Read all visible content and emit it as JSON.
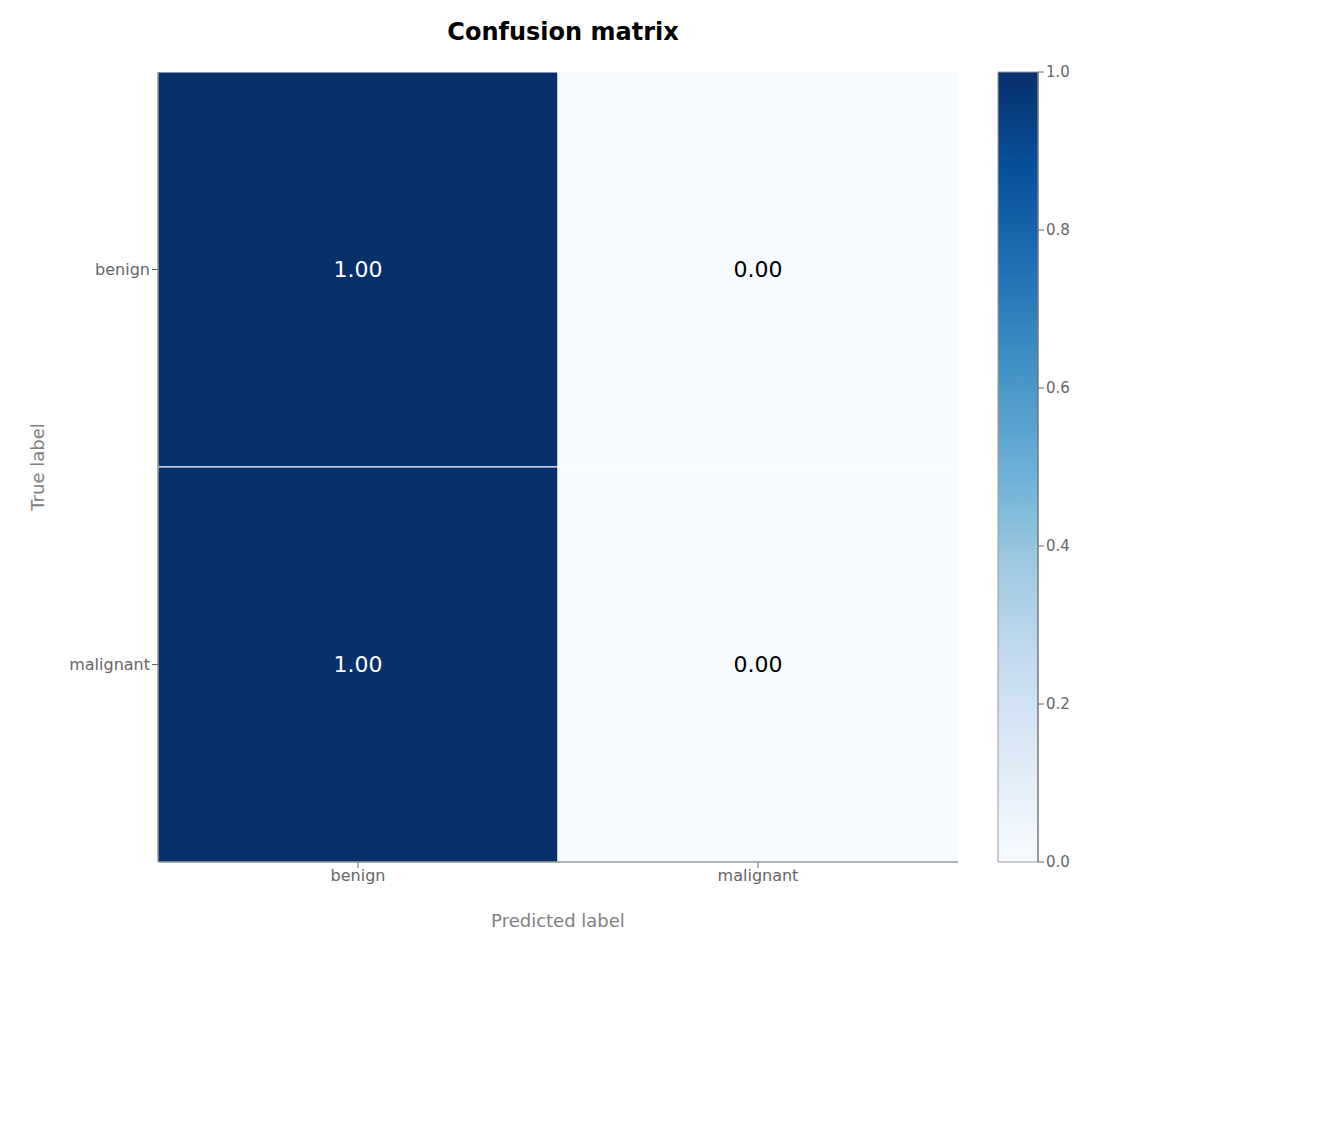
{
  "chart_data": {
    "type": "heatmap",
    "title": "Confusion matrix",
    "x_label": "Predicted label",
    "y_label": "True label",
    "categories": [
      "benign",
      "malignant"
    ],
    "matrix": [
      [
        1.0,
        0.0
      ],
      [
        1.0,
        0.0
      ]
    ],
    "value_labels": [
      [
        "1.00",
        "0.00"
      ],
      [
        "1.00",
        "0.00"
      ]
    ],
    "data_labels": true,
    "color": "Blues",
    "colorbar_range": [
      0.0,
      1.0
    ],
    "colorbar_ticks": [
      {
        "value": 0.0,
        "label": "0.0"
      },
      0.2,
      0.4,
      0.6,
      0.8,
      {
        "value": 1.0,
        "label": "1.0"
      }
    ]
  }
}
